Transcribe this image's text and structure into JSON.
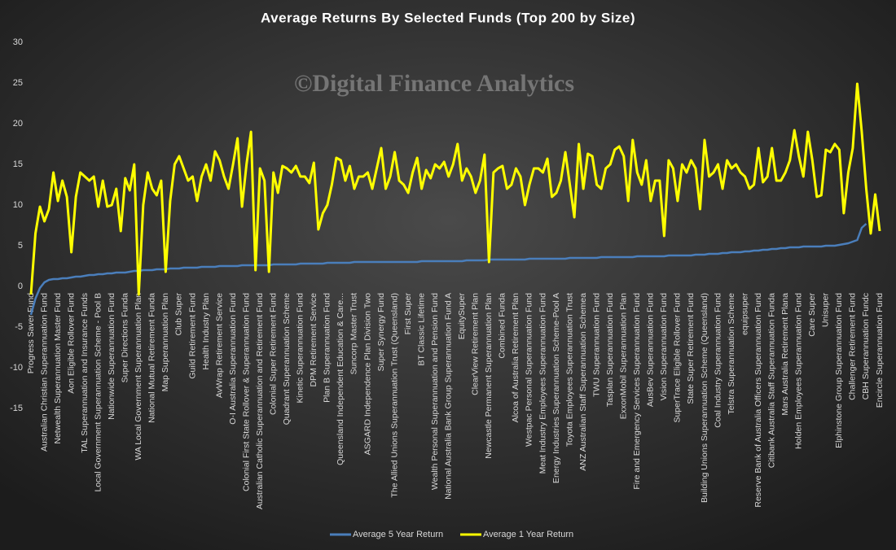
{
  "chart_data": {
    "type": "line",
    "title": "Average Returns By Selected Funds (Top 200 by Size)",
    "watermark": "©Digital Finance Analytics",
    "categories": [
      "Progress Saver Fund",
      null,
      null,
      "Australian Christian Superannuation Fund",
      null,
      null,
      "Netwealth Superannuation Master Fund",
      null,
      null,
      "Aon Eligible Rollover Fund",
      null,
      null,
      "TAL Superannuation and Insurance Funds",
      null,
      null,
      "Local Government Superannuation Scheme - Pool B",
      null,
      null,
      "Nationwide Superannuation Fund",
      null,
      null,
      "Super Directions Funda",
      null,
      null,
      "WA Local Government Superannuation Plan",
      null,
      null,
      "National Mutual Retirement Funda",
      null,
      null,
      "Map Superannuation Plan",
      null,
      null,
      "Club Super",
      null,
      null,
      "Guild Retirement Fund",
      null,
      null,
      "Health Industry Plan",
      null,
      null,
      "AvWrap Retirement Service",
      null,
      null,
      "O-I Australia Superannuation Fund",
      null,
      null,
      "Colonial First State Rollover & Superannuation Fund",
      null,
      null,
      "Australian Catholic Superannuation and Retirement Fund",
      null,
      null,
      "Colonial Super Retirement Fund",
      null,
      null,
      "Quadrant Superannuation Scheme",
      null,
      null,
      "Kinetic Superannuation Fund",
      null,
      null,
      "DPM Retirement Service",
      null,
      null,
      "Plan B Superannuation Fund",
      null,
      null,
      "Queensland Independent Education & Care...",
      null,
      null,
      "Suncorp Master Trust",
      null,
      null,
      "ASGARD Independence Plan Division Two",
      null,
      null,
      "Super Synergy Fund",
      null,
      null,
      "The Allied Unions Superannuation Trust (Queensland)",
      null,
      null,
      "First Super",
      null,
      null,
      "BT Classic Lifetime",
      null,
      null,
      "Wealth Personal Superannuation and Pension Fund",
      null,
      null,
      "National Australia Bank Group Superannuation Fund A",
      null,
      null,
      "EquitySuper",
      null,
      null,
      "ClearView Retirement Plan",
      null,
      null,
      "Newcastle Permanent Superannuation Plan",
      null,
      null,
      "Combined Funda",
      null,
      null,
      "Alcoa of Australia Retirement Plan",
      null,
      null,
      "Westpac Personal Superannuation Fund",
      null,
      null,
      "Meat Industry Employees Superannuation Fund",
      null,
      null,
      "Energy Industries Superannuation Scheme-Pool A",
      null,
      null,
      "Toyota Employees Superannuation Trust",
      null,
      null,
      "ANZ Australian Staff Superannuation Schemea",
      null,
      null,
      "TWU Superannuation Fund",
      null,
      null,
      "Tasplan Superannuation Fund",
      null,
      null,
      "ExxonMobil Superannuation Plan",
      null,
      null,
      "Fire and Emergency Services Superannuation Fund",
      null,
      null,
      "AusBev Superannuation Fund",
      null,
      null,
      "Vision Superannuation Fund",
      null,
      null,
      "SuperTrace Eligible Rollover Fund",
      null,
      null,
      "State Super Retirement Fund",
      null,
      null,
      "Building Unions Superannuation Scheme (Queensland)",
      null,
      null,
      "Coal Industry Superannuation Fund",
      null,
      null,
      "Telstra Superannuation Scheme",
      null,
      null,
      "equipsuper",
      null,
      null,
      "Reserve Bank of Australia Officers Superannuation Fund",
      null,
      null,
      "Citibank Australia Staff Superannuation Funda",
      null,
      null,
      "Mars Australia Retirement Plana",
      null,
      null,
      "Holden Employees Superannuation Fund",
      null,
      null,
      "Care Super",
      null,
      null,
      "Unisuper",
      null,
      null,
      "Elphinstone Group Superannuation Fund",
      null,
      null,
      "Challenger Retirement Fund",
      null,
      null,
      "CBH Superannuation Fundc",
      null,
      null,
      "Encircle Superannuation Fund"
    ],
    "series": [
      {
        "name": "Average 5 Year Return",
        "color": "#4a7ebb",
        "values": [
          -3.5,
          -1.5,
          -0.2,
          0.5,
          0.8,
          0.9,
          0.9,
          1.0,
          1.0,
          1.1,
          1.2,
          1.2,
          1.3,
          1.4,
          1.4,
          1.5,
          1.5,
          1.6,
          1.6,
          1.7,
          1.7,
          1.7,
          1.8,
          1.9,
          1.9,
          2.0,
          2.0,
          2.0,
          2.1,
          2.1,
          2.1,
          2.2,
          2.2,
          2.2,
          2.3,
          2.3,
          2.3,
          2.3,
          2.4,
          2.4,
          2.4,
          2.4,
          2.5,
          2.5,
          2.5,
          2.5,
          2.5,
          2.6,
          2.6,
          2.6,
          2.6,
          2.6,
          2.6,
          2.6,
          2.7,
          2.7,
          2.7,
          2.7,
          2.7,
          2.7,
          2.8,
          2.8,
          2.8,
          2.8,
          2.8,
          2.8,
          2.9,
          2.9,
          2.9,
          2.9,
          2.9,
          2.9,
          3.0,
          3.0,
          3.0,
          3.0,
          3.0,
          3.0,
          3.0,
          3.0,
          3.0,
          3.0,
          3.0,
          3.0,
          3.0,
          3.0,
          3.0,
          3.1,
          3.1,
          3.1,
          3.1,
          3.1,
          3.1,
          3.1,
          3.1,
          3.1,
          3.1,
          3.2,
          3.2,
          3.2,
          3.2,
          3.2,
          3.3,
          3.3,
          3.3,
          3.3,
          3.3,
          3.3,
          3.3,
          3.3,
          3.3,
          3.4,
          3.4,
          3.4,
          3.4,
          3.4,
          3.4,
          3.4,
          3.4,
          3.4,
          3.5,
          3.5,
          3.5,
          3.5,
          3.5,
          3.5,
          3.5,
          3.6,
          3.6,
          3.6,
          3.6,
          3.6,
          3.6,
          3.6,
          3.6,
          3.7,
          3.7,
          3.7,
          3.7,
          3.7,
          3.7,
          3.7,
          3.8,
          3.8,
          3.8,
          3.8,
          3.8,
          3.8,
          3.9,
          3.9,
          3.9,
          4.0,
          4.0,
          4.0,
          4.1,
          4.1,
          4.2,
          4.2,
          4.2,
          4.3,
          4.3,
          4.4,
          4.4,
          4.5,
          4.5,
          4.6,
          4.6,
          4.7,
          4.7,
          4.8,
          4.8,
          4.8,
          4.9,
          4.9,
          4.9,
          4.9,
          4.9,
          5.0,
          5.0,
          5.0,
          5.1,
          5.2,
          5.3,
          5.5,
          5.7,
          7.2,
          7.7,
          null,
          null,
          null
        ]
      },
      {
        "name": "Average 1 Year Return",
        "color": "#ffff00",
        "values": [
          -1,
          6.5,
          9.8,
          8,
          9.5,
          14,
          10.5,
          13,
          11,
          4.2,
          11,
          14,
          13.5,
          13,
          13.5,
          9.8,
          13,
          9.8,
          10,
          12,
          6.8,
          13.3,
          11.8,
          15,
          -1,
          10,
          14,
          12,
          11.2,
          13,
          1.8,
          10.5,
          15,
          16,
          14.5,
          13,
          13.5,
          10.5,
          13.5,
          15,
          13,
          16.6,
          15.5,
          13.5,
          12,
          15,
          18.2,
          9.8,
          15,
          19,
          2,
          14.5,
          13,
          1.8,
          14,
          11.5,
          14.8,
          14.5,
          14,
          14.8,
          13.5,
          13.5,
          12.7,
          15.2,
          7,
          9,
          10,
          12.5,
          15.8,
          15.5,
          13,
          14.8,
          12,
          13.5,
          13.5,
          14,
          12,
          14.5,
          17,
          12,
          13.5,
          16.5,
          13,
          12.5,
          11.5,
          14,
          15.8,
          12,
          14.3,
          13.3,
          15,
          14.5,
          15.3,
          13.5,
          15,
          17.5,
          13,
          14.5,
          13.5,
          11.5,
          13,
          16.2,
          3,
          14,
          14.5,
          14.8,
          12,
          12.5,
          14.5,
          13.5,
          10,
          12.5,
          14.5,
          14.5,
          14,
          15.7,
          11,
          11.5,
          13,
          16.5,
          12.5,
          8.5,
          17.5,
          12,
          16.3,
          16,
          12.5,
          12,
          14.5,
          15,
          16.8,
          17.2,
          16,
          10.5,
          18,
          14,
          12.5,
          15.5,
          10.5,
          13,
          13,
          6.2,
          15.5,
          14.5,
          10.5,
          15,
          14,
          15.5,
          14.5,
          9.5,
          18,
          13.5,
          14,
          15,
          12,
          15.5,
          14.5,
          15,
          14,
          13.5,
          12,
          12.5,
          17,
          12.8,
          13.5,
          17,
          13,
          13,
          14,
          15.5,
          19.2,
          16,
          13.5,
          19,
          15.5,
          11,
          11.2,
          16.8,
          16.5,
          17.5,
          16.8,
          9,
          14,
          17,
          24.9,
          19,
          12,
          6.5,
          11.3,
          6.8
        ]
      }
    ],
    "ylim": [
      -15,
      30
    ],
    "yticks": [
      -15,
      -10,
      -5,
      0,
      5,
      10,
      15,
      20,
      25,
      30
    ],
    "grid": false,
    "legend": "bottom"
  }
}
